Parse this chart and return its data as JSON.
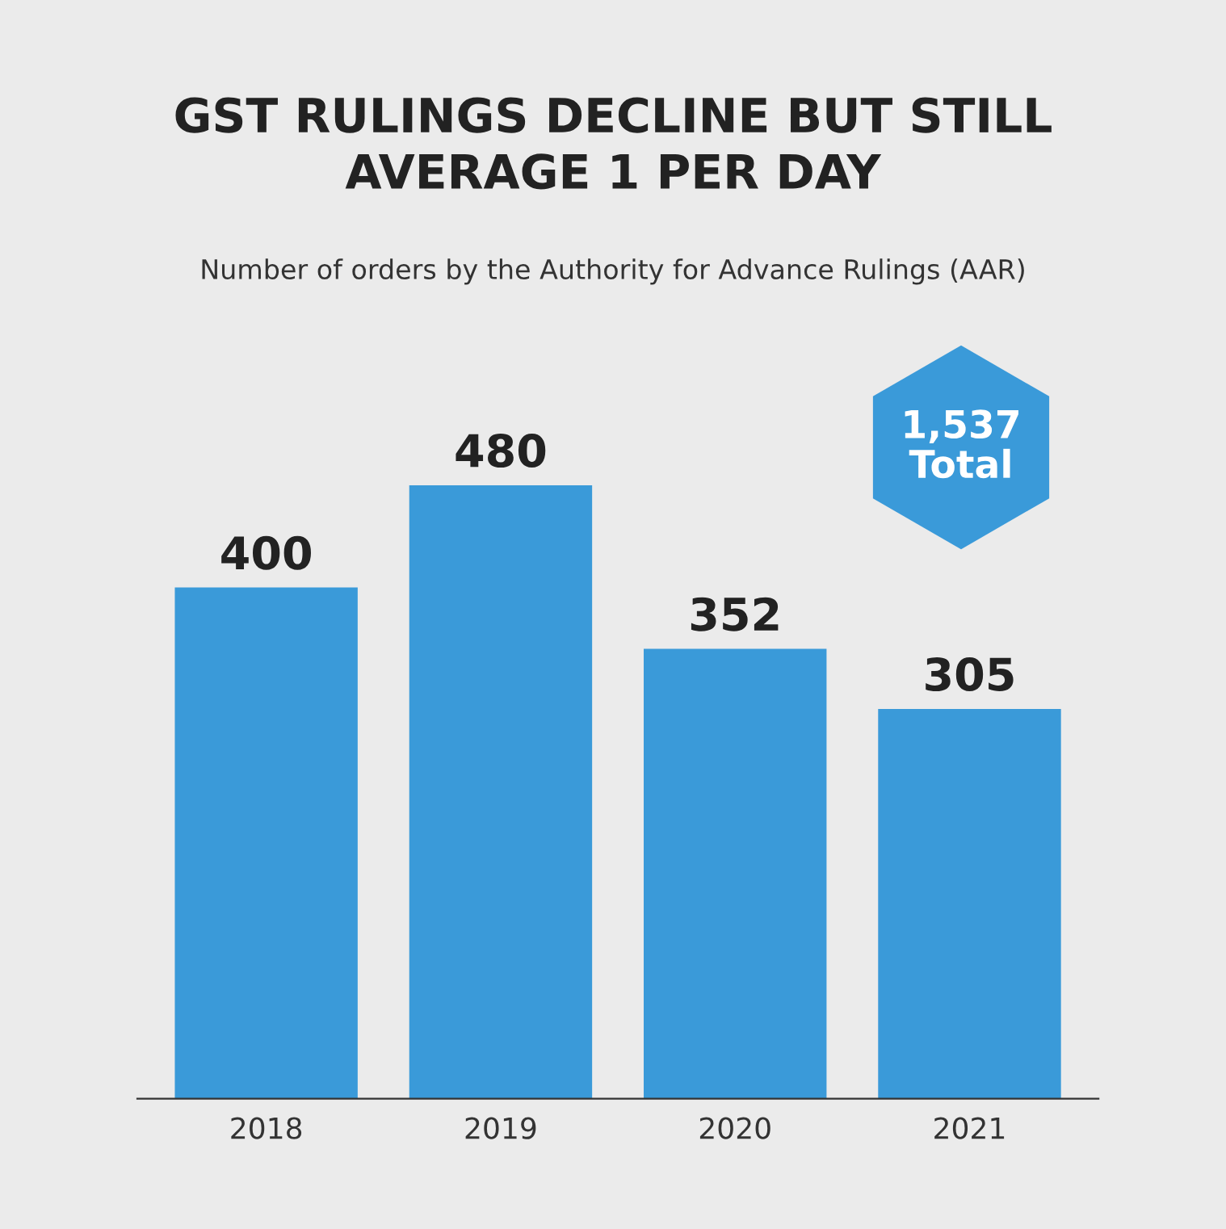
{
  "chart_data": {
    "type": "bar",
    "title": "GST RULINGS DECLINE BUT STILL\nAVERAGE 1 PER DAY",
    "subtitle": "Number of orders by the Authority for Advance Rulings (AAR)",
    "categories": [
      "2018",
      "2019",
      "2020",
      "2021"
    ],
    "values": [
      400,
      480,
      352,
      305
    ],
    "color": "#3a9ad9",
    "data_labels": true,
    "grid": false,
    "legend": false,
    "tick_labels": "x",
    "annotations": [
      "1,537\nTotal"
    ]
  }
}
